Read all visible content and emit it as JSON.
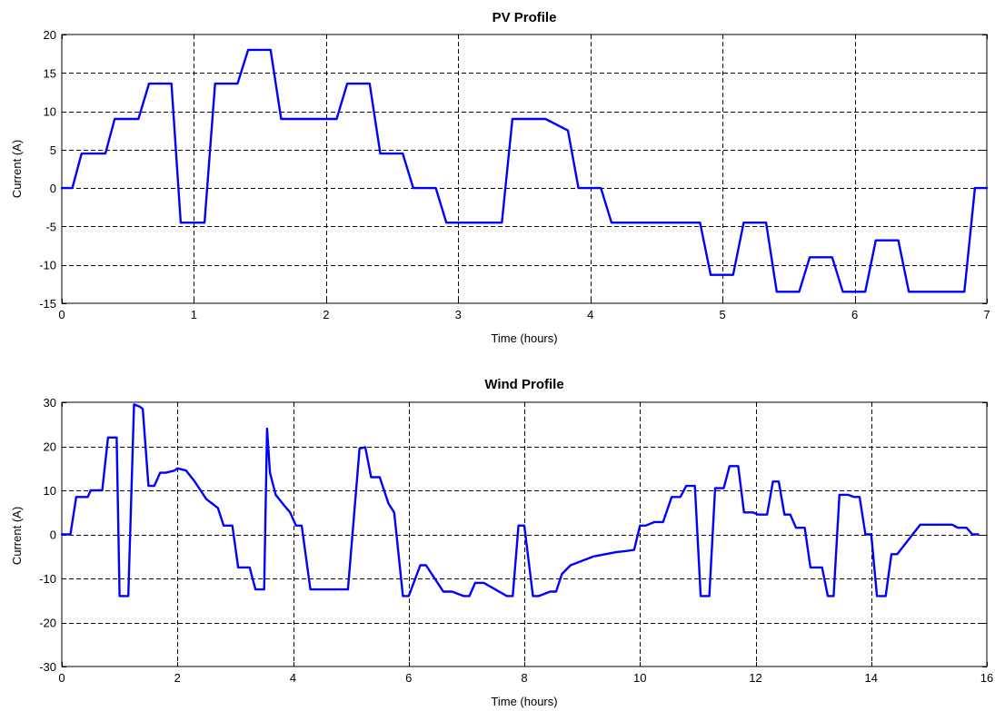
{
  "colors": {
    "series": "#0000ff",
    "axes": "#000000",
    "background": "#ffffff"
  },
  "chart_data": [
    {
      "type": "line",
      "title": "PV Profile",
      "xlabel": "Time (hours)",
      "ylabel": "Current (A)",
      "xlim": [
        0,
        7
      ],
      "ylim": [
        -15,
        20
      ],
      "xticks": [
        0,
        1,
        2,
        3,
        4,
        5,
        6,
        7
      ],
      "yticks": [
        -15,
        -10,
        -5,
        0,
        5,
        10,
        15,
        20
      ],
      "grid": true,
      "series": [
        {
          "color": "#0000ff",
          "x": [
            0,
            0.08,
            0.15,
            0.33,
            0.4,
            0.58,
            0.66,
            0.83,
            0.9,
            1.08,
            1.16,
            1.33,
            1.41,
            1.58,
            1.66,
            1.83,
            2.08,
            2.16,
            2.33,
            2.41,
            2.58,
            2.66,
            2.83,
            2.91,
            3.08,
            3.33,
            3.41,
            3.66,
            3.83,
            3.91,
            4.08,
            4.16,
            4.33,
            4.83,
            4.91,
            5.08,
            5.16,
            5.33,
            5.41,
            5.58,
            5.66,
            5.83,
            5.91,
            6.08,
            6.16,
            6.33,
            6.41,
            6.58,
            6.83,
            6.91,
            7.0
          ],
          "y": [
            0,
            0,
            4.5,
            4.5,
            9,
            9,
            13.6,
            13.6,
            -4.5,
            -4.5,
            13.6,
            13.6,
            18,
            18,
            9,
            9,
            9,
            13.6,
            13.6,
            4.5,
            4.5,
            0,
            0,
            -4.5,
            -4.5,
            -4.5,
            9,
            9,
            7.5,
            0,
            0,
            -4.5,
            -4.5,
            -4.5,
            -11.3,
            -11.3,
            -4.5,
            -4.5,
            -13.5,
            -13.5,
            -9,
            -9,
            -13.5,
            -13.5,
            -6.8,
            -6.8,
            -13.5,
            -13.5,
            -13.5,
            0,
            0
          ]
        }
      ]
    },
    {
      "type": "line",
      "title": "Wind Profile",
      "xlabel": "Time (hours)",
      "ylabel": "Current (A)",
      "xlim": [
        0,
        16
      ],
      "ylim": [
        -30,
        30
      ],
      "xticks": [
        0,
        2,
        4,
        6,
        8,
        10,
        12,
        14,
        16
      ],
      "yticks": [
        -30,
        -20,
        -10,
        0,
        10,
        20,
        30
      ],
      "grid": true,
      "series": [
        {
          "color": "#0000ff",
          "x": [
            0,
            0.15,
            0.25,
            0.45,
            0.5,
            0.7,
            0.8,
            0.95,
            1.0,
            1.15,
            1.25,
            1.35,
            1.4,
            1.5,
            1.6,
            1.7,
            1.8,
            1.95,
            2.0,
            2.15,
            2.3,
            2.5,
            2.6,
            2.7,
            2.8,
            2.95,
            3.05,
            3.25,
            3.35,
            3.5,
            3.55,
            3.6,
            3.7,
            3.85,
            3.95,
            4.05,
            4.15,
            4.3,
            4.8,
            4.95,
            5.15,
            5.25,
            5.35,
            5.5,
            5.65,
            5.75,
            5.9,
            6.0,
            6.2,
            6.3,
            6.6,
            6.75,
            6.95,
            7.05,
            7.15,
            7.3,
            7.7,
            7.8,
            7.9,
            8.0,
            8.15,
            8.25,
            8.45,
            8.55,
            8.65,
            8.8,
            9.0,
            9.2,
            9.4,
            9.6,
            9.75,
            9.9,
            10.0,
            10.1,
            10.25,
            10.4,
            10.55,
            10.7,
            10.8,
            10.95,
            11.05,
            11.2,
            11.3,
            11.45,
            11.55,
            11.7,
            11.8,
            11.95,
            12.05,
            12.2,
            12.3,
            12.4,
            12.5,
            12.6,
            12.7,
            12.85,
            12.95,
            13.15,
            13.25,
            13.35,
            13.45,
            13.6,
            13.7,
            13.8,
            13.9,
            14.0,
            14.1,
            14.25,
            14.35,
            14.45,
            14.85,
            15.0,
            15.4,
            15.5,
            15.65,
            15.75,
            15.85
          ],
          "y": [
            0,
            0,
            8.5,
            8.5,
            10,
            10,
            22,
            22,
            -14,
            -14,
            29.5,
            29,
            28.5,
            11,
            11,
            14,
            14,
            14.5,
            15,
            14.5,
            12,
            8,
            7,
            6,
            2,
            2,
            -7.5,
            -7.5,
            -12.5,
            -12.5,
            24,
            14,
            9,
            6.5,
            5,
            2,
            2,
            -12.5,
            -12.5,
            -12.5,
            19.5,
            19.8,
            13,
            13,
            7,
            5,
            -14,
            -14,
            -7,
            -7,
            -13,
            -13,
            -14,
            -14,
            -11,
            -11,
            -14,
            -14,
            2,
            2,
            -14,
            -14,
            -13,
            -13,
            -9,
            -7,
            -6,
            -5,
            -4.5,
            -4,
            -3.8,
            -3.5,
            2,
            2,
            2.8,
            2.8,
            8.5,
            8.5,
            11,
            11,
            -14,
            -14,
            10.5,
            10.5,
            15.5,
            15.5,
            5,
            5,
            4.5,
            4.5,
            12,
            12,
            4.5,
            4.5,
            1.5,
            1.5,
            -7.5,
            -7.5,
            -14,
            -14,
            9,
            9,
            8.5,
            8.5,
            0,
            0,
            -14,
            -14,
            -4.5,
            -4.5,
            2.2,
            2.2,
            2.2,
            1.5,
            1.5,
            0,
            0
          ]
        }
      ]
    }
  ]
}
